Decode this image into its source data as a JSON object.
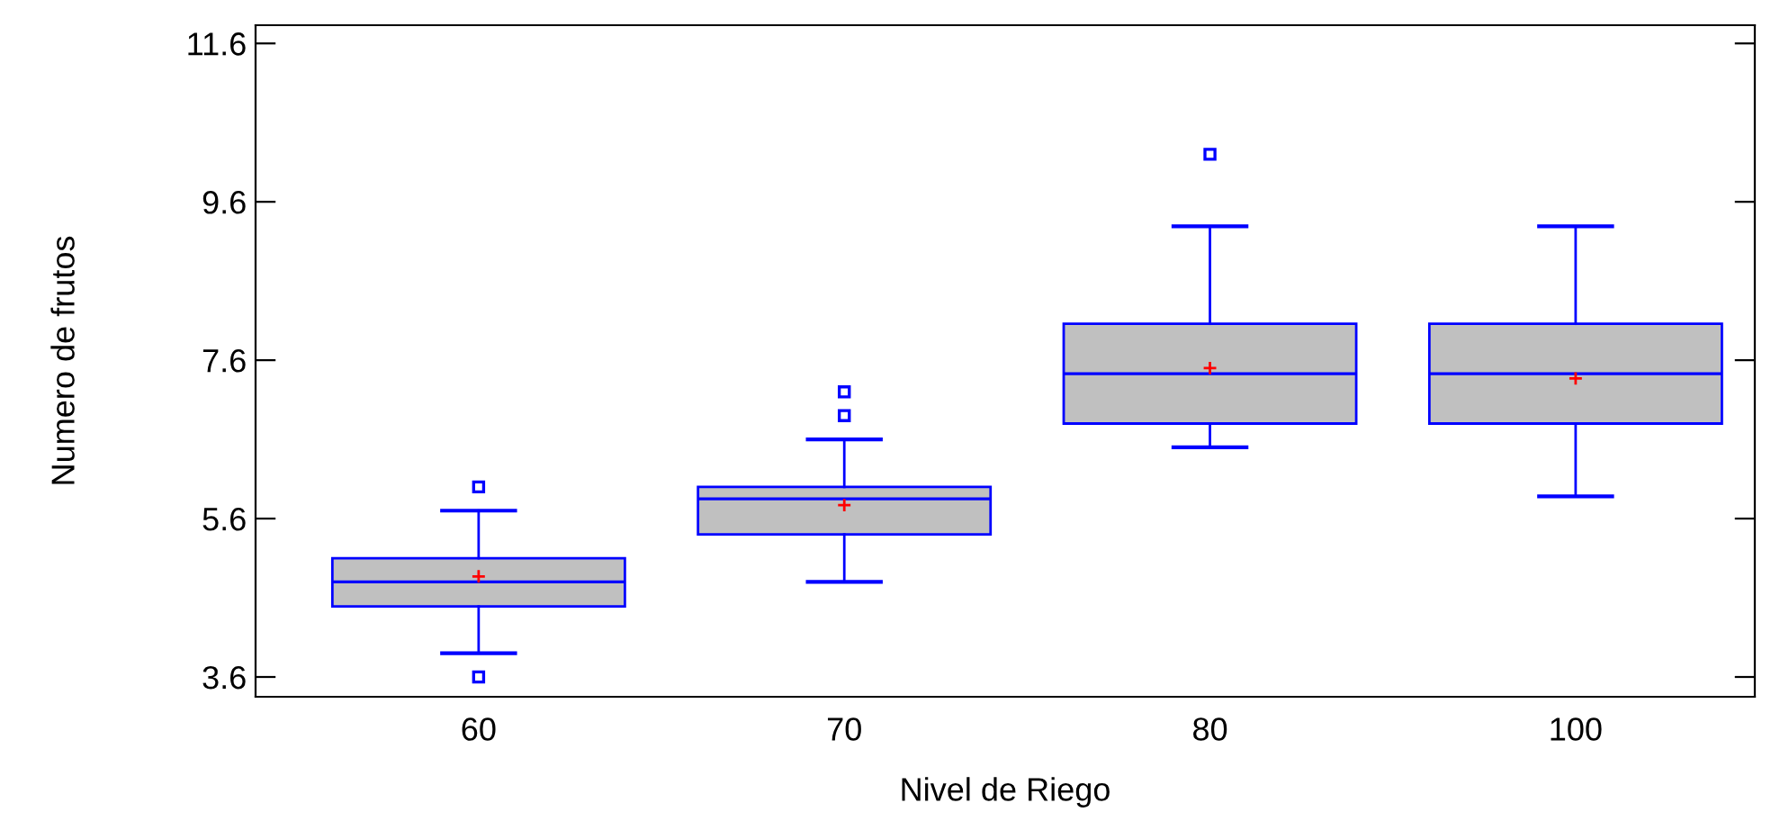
{
  "chart_data": {
    "type": "box",
    "xlabel": "Nivel de Riego",
    "ylabel": "Numero de frutos",
    "categories": [
      "60",
      "70",
      "80",
      "100"
    ],
    "ylim": [
      3.35,
      11.83
    ],
    "yticks": [
      3.6,
      5.6,
      7.6,
      9.6,
      11.6
    ],
    "grid": false,
    "legend": false,
    "color": "#0000ff",
    "boxes": [
      {
        "low": 3.9,
        "q1": 4.49,
        "median": 4.8,
        "q3": 5.1,
        "high": 5.7,
        "mean": 4.87,
        "outliers": [
          6.0,
          3.6
        ]
      },
      {
        "low": 4.8,
        "q1": 5.4,
        "median": 5.85,
        "q3": 6.0,
        "high": 6.6,
        "mean": 5.77,
        "outliers": [
          7.2,
          6.9
        ]
      },
      {
        "low": 6.5,
        "q1": 6.8,
        "median": 7.43,
        "q3": 8.06,
        "high": 9.29,
        "mean": 7.5,
        "outliers": [
          10.2
        ]
      },
      {
        "low": 5.88,
        "q1": 6.8,
        "median": 7.43,
        "q3": 8.06,
        "high": 9.29,
        "mean": 7.37
      }
    ]
  }
}
